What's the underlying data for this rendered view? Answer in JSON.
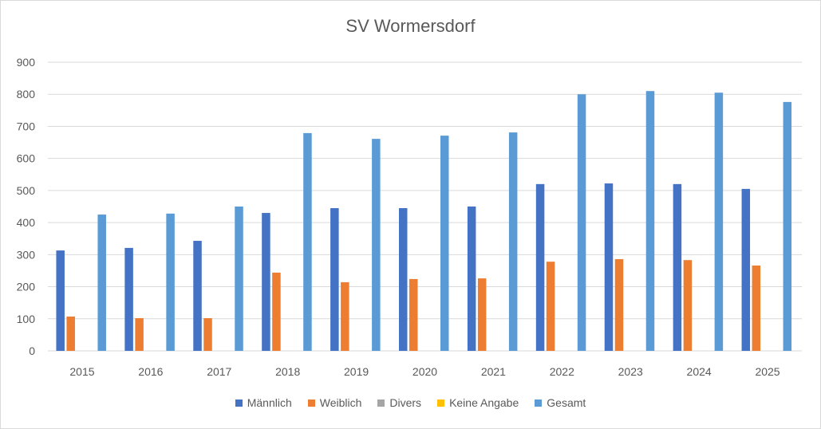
{
  "chart_data": {
    "type": "bar",
    "title": "SV Wormersdorf",
    "xlabel": "",
    "ylabel": "",
    "ylim": [
      0,
      900
    ],
    "yticks": [
      "0",
      "100",
      "200",
      "300",
      "400",
      "500",
      "600",
      "700",
      "800",
      "900"
    ],
    "grid": true,
    "legend_position": "bottom",
    "categories": [
      "2015",
      "2016",
      "2017",
      "2018",
      "2019",
      "2020",
      "2021",
      "2022",
      "2023",
      "2024",
      "2025"
    ],
    "series": [
      {
        "name": "Männlich",
        "color": "#4472c4",
        "values": [
          313,
          321,
          343,
          430,
          445,
          445,
          450,
          520,
          522,
          520,
          505
        ]
      },
      {
        "name": "Weiblich",
        "color": "#ed7d31",
        "values": [
          107,
          102,
          102,
          244,
          214,
          224,
          226,
          278,
          286,
          283,
          266
        ]
      },
      {
        "name": "Divers",
        "color": "#a5a5a5",
        "values": [
          0,
          0,
          0,
          0,
          0,
          0,
          0,
          0,
          0,
          0,
          0
        ]
      },
      {
        "name": "Keine Angabe",
        "color": "#ffc000",
        "values": [
          0,
          0,
          0,
          0,
          0,
          0,
          0,
          0,
          0,
          0,
          0
        ]
      },
      {
        "name": "Gesamt",
        "color": "#5b9bd5",
        "values": [
          425,
          428,
          450,
          679,
          661,
          671,
          681,
          800,
          810,
          805,
          776
        ]
      }
    ]
  }
}
